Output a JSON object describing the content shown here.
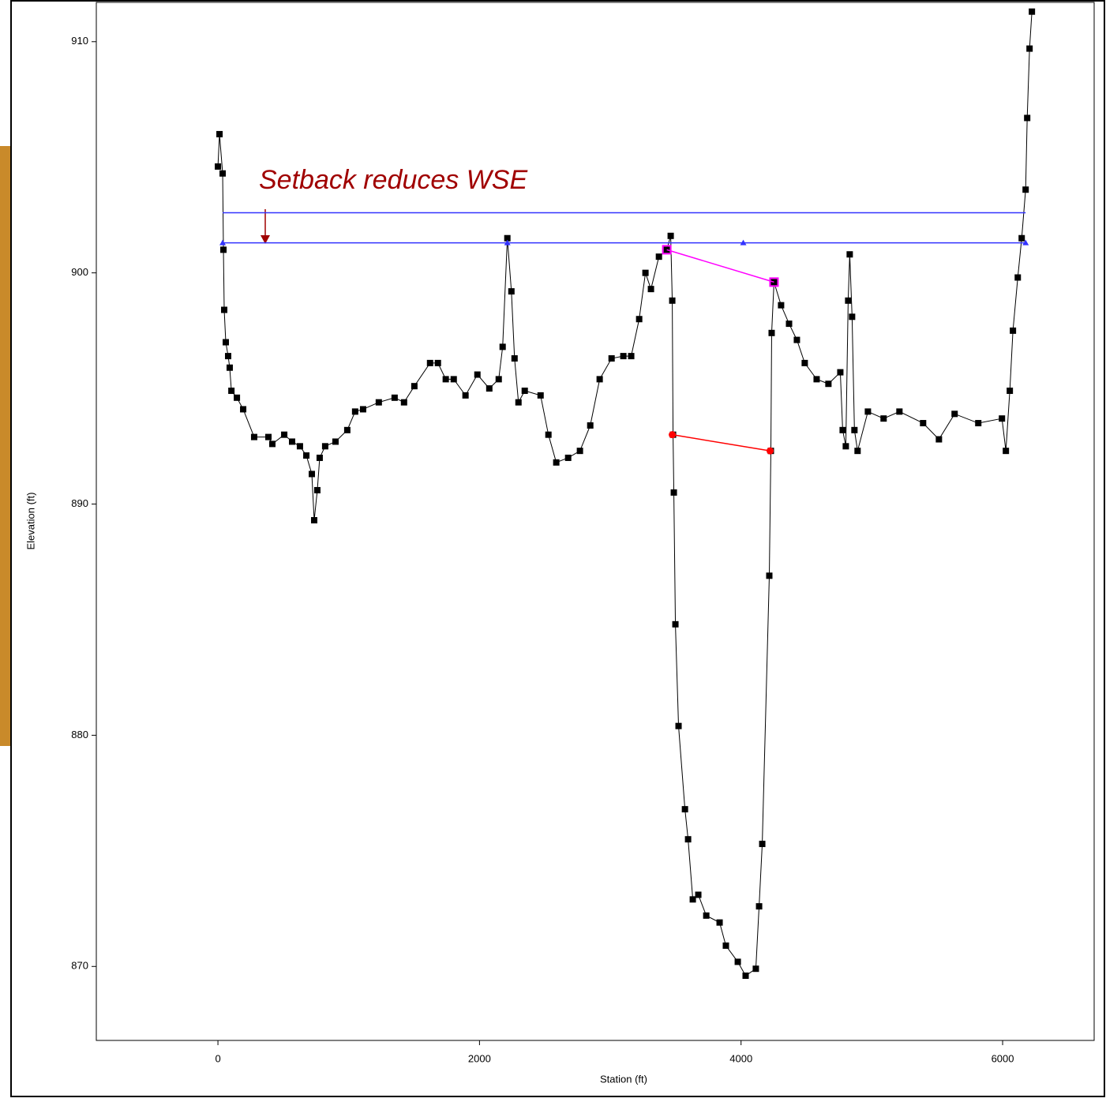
{
  "chart_data": {
    "type": "line",
    "xlabel": "Station (ft)",
    "ylabel": "Elevation (ft)",
    "annotation": "Setback reduces WSE",
    "xlim": [
      -930,
      6700
    ],
    "xticks": [
      0,
      2000,
      4000,
      6000
    ],
    "ylim": [
      866.8,
      911.7
    ],
    "yticks": [
      870,
      880,
      890,
      900,
      910
    ],
    "grid": false,
    "series": [
      {
        "color": "#000000",
        "marker": "square",
        "x": [
          0,
          12,
          36,
          42,
          48,
          60,
          78,
          90,
          103,
          145,
          193,
          277,
          386,
          416,
          507,
          567,
          627,
          676,
          718,
          736,
          760,
          778,
          820,
          899,
          989,
          1049,
          1110,
          1230,
          1351,
          1423,
          1502,
          1622,
          1682,
          1742,
          1803,
          1893,
          1984,
          2075,
          2147,
          2177,
          2213,
          2244,
          2268,
          2298,
          2346,
          2467,
          2527,
          2587,
          2678,
          2768,
          2847,
          2919,
          3010,
          3100,
          3160,
          3221,
          3269,
          3311,
          3372,
          3432,
          3462,
          3474,
          3480,
          3486,
          3498,
          3522,
          3571,
          3595,
          3631,
          3673,
          3734,
          3836,
          3884,
          3975,
          4035,
          4113,
          4138,
          4162,
          4216,
          4228,
          4234,
          4252,
          4306,
          4367,
          4427,
          4487,
          4578,
          4668,
          4759,
          4777,
          4801,
          4819,
          4831,
          4849,
          4867,
          4891,
          4970,
          5090,
          5211,
          5392,
          5513,
          5633,
          5814,
          5995,
          6025,
          6055,
          6079,
          6116,
          6146,
          6176,
          6188,
          6206,
          6224
        ],
        "values": [
          904.6,
          906.0,
          904.3,
          901.0,
          898.4,
          897.0,
          896.4,
          895.9,
          894.9,
          894.6,
          894.1,
          892.9,
          892.9,
          892.6,
          893.0,
          892.7,
          892.5,
          892.1,
          891.3,
          889.3,
          890.6,
          892.0,
          892.5,
          892.7,
          893.2,
          894.0,
          894.1,
          894.4,
          894.6,
          894.4,
          895.1,
          896.1,
          896.1,
          895.4,
          895.4,
          894.7,
          895.6,
          895.0,
          895.4,
          896.8,
          901.5,
          899.2,
          896.3,
          894.4,
          894.9,
          894.7,
          893.0,
          891.8,
          892.0,
          892.3,
          893.4,
          895.4,
          896.3,
          896.4,
          896.4,
          898.0,
          900.0,
          899.3,
          900.7,
          901.0,
          901.6,
          898.8,
          893.0,
          890.5,
          884.8,
          880.4,
          876.8,
          875.5,
          872.9,
          873.1,
          872.2,
          871.9,
          870.9,
          870.2,
          869.6,
          869.9,
          872.6,
          875.3,
          886.9,
          892.3,
          897.4,
          899.6,
          898.6,
          897.8,
          897.1,
          896.1,
          895.4,
          895.2,
          895.7,
          893.2,
          892.5,
          898.8,
          900.8,
          898.1,
          893.2,
          892.3,
          894.0,
          893.7,
          894.0,
          893.5,
          892.8,
          893.9,
          893.5,
          893.7,
          892.3,
          894.9,
          897.5,
          899.8,
          901.5,
          903.6,
          906.7,
          909.7,
          911.3
        ]
      },
      {
        "color": "#3333ff",
        "marker": "none",
        "x": [
          36,
          6176
        ],
        "values": [
          902.6,
          902.6
        ]
      },
      {
        "color": "#3333ff",
        "marker": "triangle",
        "x": [
          36,
          2213,
          4017,
          6176
        ],
        "values": [
          901.3,
          901.3,
          901.3,
          901.3
        ]
      },
      {
        "color": "#ff0000",
        "marker": "circle",
        "x": [
          3474,
          4222
        ],
        "values": [
          893.0,
          892.3
        ]
      },
      {
        "color": "#ff00ff",
        "marker": "square-open",
        "x": [
          3432,
          4252
        ],
        "values": [
          901.0,
          899.6
        ]
      }
    ]
  }
}
